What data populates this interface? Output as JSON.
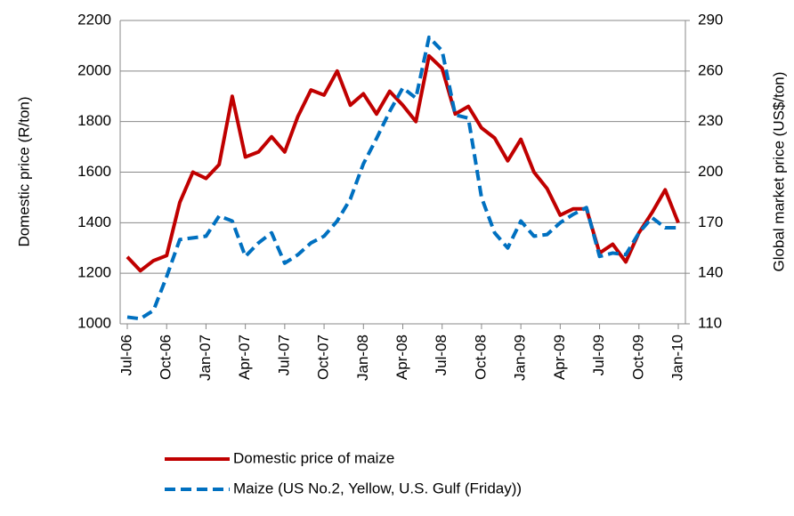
{
  "chart_data": {
    "type": "line",
    "categories": [
      "Jul-06",
      null,
      null,
      "Oct-06",
      null,
      null,
      "Jan-07",
      null,
      null,
      "Apr-07",
      null,
      null,
      "Jul-07",
      null,
      null,
      "Oct-07",
      null,
      null,
      "Jan-08",
      null,
      null,
      "Apr-08",
      null,
      null,
      "Jul-08",
      null,
      null,
      "Oct-08",
      null,
      null,
      "Jan-09",
      null,
      null,
      "Apr-09",
      null,
      null,
      "Jul-09",
      null,
      null,
      "Oct-09",
      null,
      null,
      "Jan-10"
    ],
    "ylabel": "Domestic price (R/ton)",
    "y2label": "Global market price (US$/ton)",
    "ylim": [
      1000,
      2200
    ],
    "yticks": [
      1000,
      1200,
      1400,
      1600,
      1800,
      2000,
      2200
    ],
    "y2lim": [
      110,
      290
    ],
    "y2ticks": [
      110,
      140,
      170,
      200,
      230,
      260,
      290
    ],
    "grid": true,
    "series": [
      {
        "name": "Domestic price of maize",
        "color": "#c00000",
        "dash": "solid",
        "values": [
          1265,
          1210,
          1250,
          1270,
          1480,
          1600,
          1575,
          1630,
          1900,
          1660,
          1680,
          1740,
          1680,
          1820,
          1925,
          1905,
          2000,
          1865,
          1910,
          1830,
          1920,
          1865,
          1800,
          2060,
          2010,
          1830,
          1860,
          1775,
          1735,
          1645,
          1730,
          1600,
          1535,
          1430,
          1455,
          1455,
          1280,
          1315,
          1245,
          1360,
          1440,
          1530,
          1400
        ]
      },
      {
        "name": "Maize (US No.2, Yellow, U.S. Gulf (Friday))",
        "color": "#0070c0",
        "dash": "dashed",
        "axis": "y2",
        "values": [
          114,
          113,
          118,
          138,
          160,
          161,
          162,
          174,
          171,
          150,
          158,
          164,
          146,
          151,
          158,
          162,
          171,
          184,
          205,
          220,
          236,
          250,
          244,
          280,
          272,
          234,
          232,
          185,
          164,
          155,
          171,
          162,
          163,
          170,
          175,
          179,
          150,
          152,
          151,
          164,
          173,
          167,
          167
        ]
      }
    ]
  }
}
